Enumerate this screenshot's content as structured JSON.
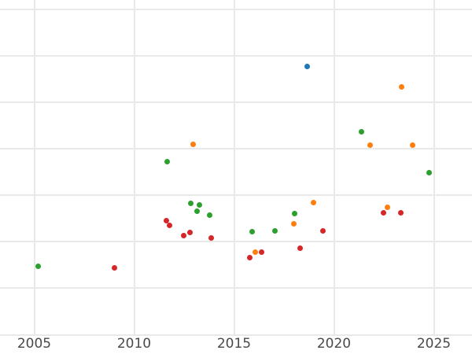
{
  "chart_data": {
    "type": "scatter",
    "title": "",
    "xlabel": "",
    "ylabel": "",
    "x_ticks": [
      "2005",
      "2010",
      "2015",
      "2020",
      "2025"
    ],
    "x_tick_years": [
      2005,
      2010,
      2015,
      2020,
      2025
    ],
    "x_range_visible": [
      2003.3,
      2026.9
    ],
    "y_axis_labeled": false,
    "y_units_note": "y-axis tick labels not visible in image; y values given in gridline units (1 unit = one gridline spacing, 0 = bottom gridline)",
    "y_gridline_count": 8,
    "y_range_units": [
      0,
      7
    ],
    "grid": true,
    "legend": false,
    "marker": "circle",
    "series": [
      {
        "name": "green",
        "color": "#2ca02c",
        "points": [
          [
            2005.2,
            1.47
          ],
          [
            2011.67,
            3.72
          ],
          [
            2012.85,
            2.82
          ],
          [
            2013.16,
            2.66
          ],
          [
            2013.27,
            2.79
          ],
          [
            2013.77,
            2.58
          ],
          [
            2015.89,
            2.21
          ],
          [
            2017.05,
            2.23
          ],
          [
            2018.03,
            2.61
          ],
          [
            2021.38,
            4.36
          ],
          [
            2024.78,
            3.49
          ]
        ]
      },
      {
        "name": "red",
        "color": "#d62728",
        "points": [
          [
            2009.03,
            1.44
          ],
          [
            2011.6,
            2.45
          ],
          [
            2011.76,
            2.36
          ],
          [
            2012.47,
            2.13
          ],
          [
            2012.78,
            2.2
          ],
          [
            2013.86,
            2.08
          ],
          [
            2015.78,
            1.66
          ],
          [
            2016.39,
            1.77
          ],
          [
            2018.31,
            1.86
          ],
          [
            2019.46,
            2.23
          ],
          [
            2022.49,
            2.62
          ],
          [
            2023.33,
            2.62
          ]
        ]
      },
      {
        "name": "orange",
        "color": "#ff7f0e",
        "points": [
          [
            2012.96,
            4.1
          ],
          [
            2016.07,
            1.78
          ],
          [
            2017.99,
            2.38
          ],
          [
            2018.98,
            2.85
          ],
          [
            2021.81,
            4.08
          ],
          [
            2022.69,
            2.74
          ],
          [
            2023.39,
            5.34
          ],
          [
            2023.95,
            4.08
          ]
        ]
      },
      {
        "name": "blue",
        "color": "#1f77b4",
        "points": [
          [
            2018.65,
            5.77
          ]
        ]
      }
    ],
    "colors": {
      "background": "#ffffff",
      "grid": "#e9e9e9",
      "tick_label": "#494949"
    }
  }
}
